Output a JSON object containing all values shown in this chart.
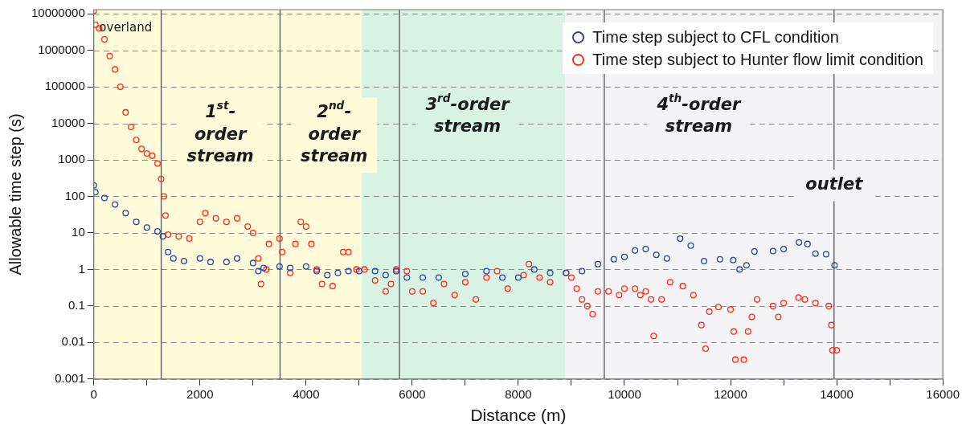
{
  "chart_data": {
    "type": "scatter",
    "xlabel": "Distance (m)",
    "ylabel": "Allowable time step (s)",
    "log": "y",
    "grid": "y",
    "legend": "top right",
    "marker": "circle",
    "xlim": [
      0,
      16000
    ],
    "xticks": [
      0,
      {
        "value": 1000,
        "label": null
      },
      2000,
      {
        "value": 3000,
        "label": null
      },
      4000,
      {
        "value": 5000,
        "label": null
      },
      6000,
      {
        "value": 7000,
        "label": null
      },
      8000,
      {
        "value": 9000,
        "label": null
      },
      10000,
      {
        "value": 11000,
        "label": null
      },
      12000,
      {
        "value": 13000,
        "label": null
      },
      14000,
      {
        "value": 15000,
        "label": null
      },
      16000
    ],
    "ylim": [
      0.001,
      13000000
    ],
    "yticks": [
      0.001,
      0.01,
      0.1,
      1,
      10,
      100,
      1000,
      10000,
      100000,
      1000000,
      10000000
    ],
    "bands": [
      {
        "axis": "x",
        "from": 0,
        "to": 5050,
        "color": "#fdfbd9"
      },
      {
        "axis": "x",
        "from": 5050,
        "to": 8880,
        "color": "#d8f3e4"
      },
      {
        "axis": "x",
        "from": 8880,
        "to": 16000,
        "color": "#f4f4f7"
      }
    ],
    "ref_lines": [
      {
        "axis": "x",
        "value": 1270,
        "color": "#555555"
      },
      {
        "axis": "x",
        "value": 3510,
        "color": "#555555"
      },
      {
        "axis": "x",
        "value": 5760,
        "color": "#555555"
      },
      {
        "axis": "x",
        "value": 9620,
        "color": "#555555"
      },
      {
        "axis": "x",
        "value": 13950,
        "color": "#555555"
      }
    ],
    "annotations": [
      {
        "text": "overland",
        "x": 100,
        "y": 4000000
      },
      "1$^{st}$-order stream",
      "2$^{nd}$-order stream",
      "3$^{rd}$-order stream",
      "4$^{th}$-order stream",
      {
        "text": "outlet",
        "x": 13950,
        "y": 200
      }
    ],
    "series": [
      {
        "name": "Time step subject to CFL condition",
        "color": "#2747a0",
        "x": [
          0,
          30,
          200,
          400,
          600,
          800,
          1000,
          1200,
          1300,
          1400,
          1500,
          1700,
          2000,
          2200,
          2500,
          2700,
          3000,
          3100,
          3200,
          3500,
          3700,
          4000,
          4200,
          4400,
          4600,
          4800,
          5000,
          5300,
          5500,
          5700,
          5900,
          6200,
          6500,
          7000,
          7400,
          7700,
          8000,
          8300,
          8600,
          8900,
          9200,
          9500,
          9800,
          10000,
          10200,
          10400,
          10600,
          10800,
          11050,
          11250,
          11500,
          11800,
          12050,
          12170,
          12300,
          12450,
          12800,
          13000,
          13290,
          13450,
          13600,
          13800,
          13960
        ],
        "values": [
          200,
          130,
          90,
          60,
          35,
          20,
          14,
          11,
          8,
          3,
          2,
          1.7,
          2,
          1.6,
          1.6,
          2,
          1.5,
          0.9,
          1.1,
          1.2,
          1.1,
          1.2,
          0.9,
          0.7,
          0.8,
          0.9,
          0.9,
          0.9,
          0.7,
          0.9,
          0.6,
          0.6,
          0.6,
          0.75,
          0.9,
          0.6,
          0.6,
          1,
          0.8,
          0.8,
          0.9,
          1.4,
          1.9,
          2.2,
          3.3,
          3.6,
          2.5,
          2,
          7,
          4.5,
          1.7,
          1.9,
          1.8,
          1,
          1.3,
          3.1,
          3.2,
          3.6,
          5.5,
          5,
          2.7,
          2.6,
          1.3
        ]
      },
      {
        "name": "Time step subject to Hunter flow limit condition",
        "color": "#ff2a1a",
        "x": [
          0,
          30,
          100,
          200,
          300,
          400,
          500,
          600,
          700,
          800,
          900,
          1000,
          1100,
          1200,
          1270,
          1320,
          1350,
          1400,
          1600,
          1800,
          2000,
          2100,
          2300,
          2500,
          2700,
          2900,
          3000,
          3100,
          3150,
          3250,
          3300,
          3500,
          3550,
          3700,
          3800,
          3900,
          4000,
          4100,
          4200,
          4300,
          4500,
          4700,
          4800,
          4950,
          5100,
          5300,
          5500,
          5600,
          5700,
          5900,
          6000,
          6200,
          6400,
          6600,
          6800,
          7000,
          7200,
          7400,
          7600,
          7800,
          8100,
          8200,
          8400,
          8600,
          8900,
          9000,
          9100,
          9200,
          9300,
          9400,
          9500,
          9700,
          9900,
          10000,
          10200,
          10300,
          10400,
          10500,
          10550,
          10700,
          10860,
          11100,
          11300,
          11450,
          11530,
          11600,
          11770,
          12000,
          12060,
          12090,
          12250,
          12330,
          12400,
          12500,
          12800,
          12900,
          13000,
          13280,
          13400,
          13600,
          13850,
          13900,
          13920,
          14000
        ],
        "values": [
          12000000,
          5000000,
          4000000,
          2000000,
          700000,
          300000,
          100000,
          20000,
          8000,
          3500,
          2000,
          1500,
          1300,
          800,
          300,
          100,
          30,
          9,
          8,
          7,
          20,
          35,
          25,
          20,
          25,
          15,
          10,
          2,
          0.4,
          1,
          5,
          7,
          3,
          0.8,
          5,
          20,
          15,
          5,
          1,
          0.4,
          0.35,
          3,
          3,
          1,
          1,
          0.5,
          0.25,
          0.4,
          1,
          0.9,
          0.25,
          0.25,
          0.12,
          0.4,
          0.2,
          0.45,
          0.15,
          0.6,
          0.9,
          0.3,
          0.7,
          1.4,
          0.6,
          0.45,
          0.8,
          0.6,
          0.3,
          0.15,
          0.1,
          0.06,
          0.25,
          0.25,
          0.2,
          0.3,
          0.3,
          0.2,
          0.25,
          0.15,
          0.015,
          0.15,
          0.45,
          0.35,
          0.2,
          0.03,
          0.0068,
          0.07,
          0.093,
          0.08,
          0.02,
          0.0034,
          0.0034,
          0.02,
          0.05,
          0.15,
          0.1,
          0.05,
          0.12,
          0.17,
          0.15,
          0.12,
          0.1,
          0.03,
          0.0061,
          0.0061
        ]
      }
    ]
  }
}
